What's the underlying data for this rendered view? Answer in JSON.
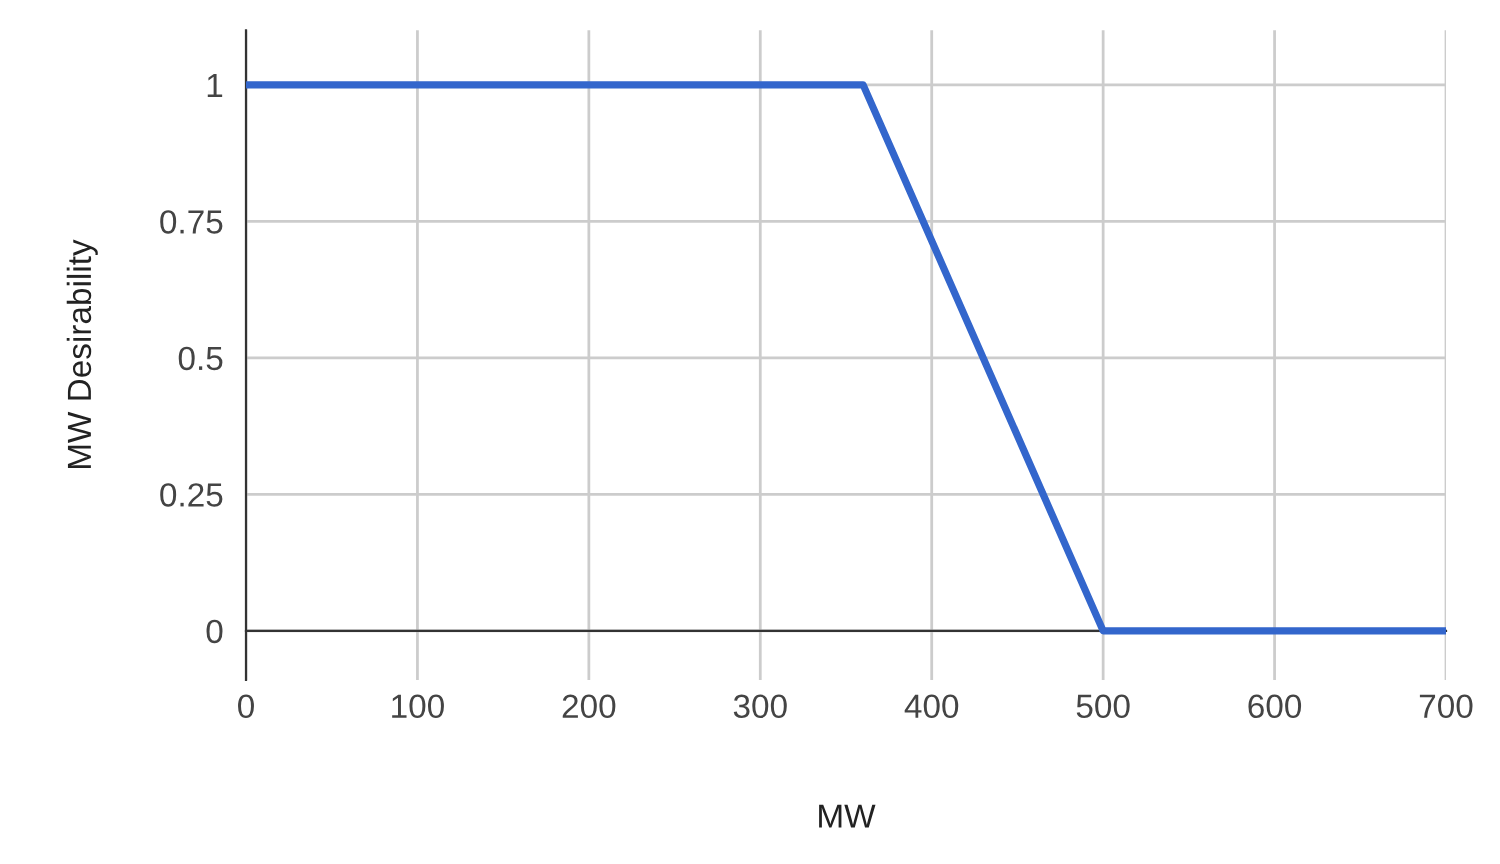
{
  "chart_data": {
    "type": "line",
    "xlabel": "MW",
    "ylabel": "MW Desirability",
    "x": [
      0,
      360,
      500,
      700
    ],
    "series": [
      {
        "color": "#3366cc",
        "values": [
          1,
          1,
          0,
          0
        ]
      }
    ],
    "xlim": [
      0,
      700
    ],
    "xticks": [
      0,
      100,
      200,
      300,
      400,
      500,
      600,
      700
    ],
    "ylim": [
      -0.09,
      1.1
    ],
    "yticks": [
      0,
      0.25,
      0.5,
      0.75,
      1
    ],
    "grid": true,
    "marker": "none",
    "line_style": "solid"
  }
}
